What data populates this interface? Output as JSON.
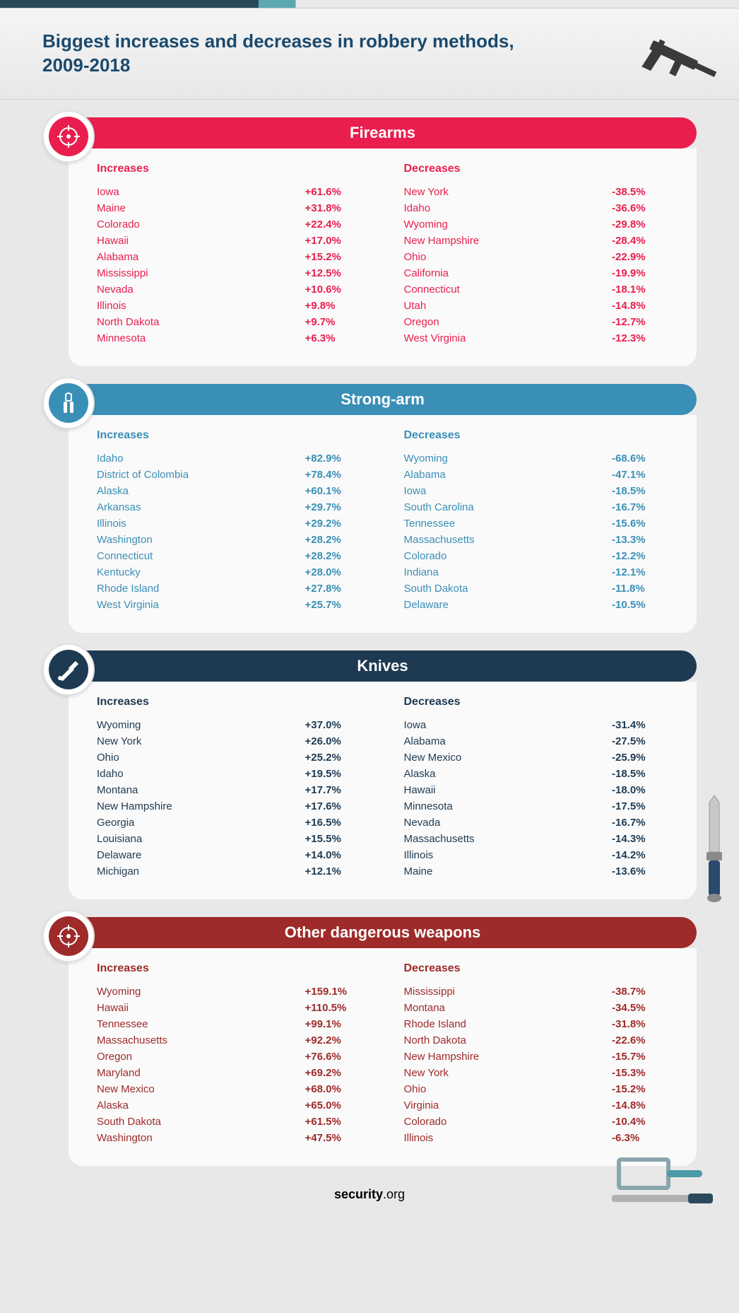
{
  "title": "Biggest increases and decreases in robbery methods, 2009-2018",
  "footer_brand": "security",
  "footer_suffix": ".org",
  "colors": {
    "title_text": "#1a4a6e",
    "card_bg": "#fafafa",
    "page_bg": "#e8e8e8"
  },
  "sections": [
    {
      "id": "firearms",
      "title": "Firearms",
      "header_bg": "#e91e4e",
      "badge_bg": "#e91e4e",
      "accent": "#e91e4e",
      "icon": "crosshair",
      "increases": [
        {
          "state": "Iowa",
          "value": "+61.6%"
        },
        {
          "state": "Maine",
          "value": "+31.8%"
        },
        {
          "state": "Colorado",
          "value": "+22.4%"
        },
        {
          "state": "Hawaii",
          "value": "+17.0%"
        },
        {
          "state": "Alabama",
          "value": "+15.2%"
        },
        {
          "state": "Mississippi",
          "value": "+12.5%"
        },
        {
          "state": "Nevada",
          "value": "+10.6%"
        },
        {
          "state": "Illinois",
          "value": "+9.8%"
        },
        {
          "state": "North Dakota",
          "value": "+9.7%"
        },
        {
          "state": "Minnesota",
          "value": "+6.3%"
        }
      ],
      "decreases": [
        {
          "state": "New York",
          "value": "-38.5%"
        },
        {
          "state": "Idaho",
          "value": "-36.6%"
        },
        {
          "state": "Wyoming",
          "value": "-29.8%"
        },
        {
          "state": "New Hampshire",
          "value": "-28.4%"
        },
        {
          "state": "Ohio",
          "value": "-22.9%"
        },
        {
          "state": "California",
          "value": "-19.9%"
        },
        {
          "state": "Connecticut",
          "value": "-18.1%"
        },
        {
          "state": "Utah",
          "value": "-14.8%"
        },
        {
          "state": "Oregon",
          "value": "-12.7%"
        },
        {
          "state": "West Virginia",
          "value": "-12.3%"
        }
      ]
    },
    {
      "id": "strongarm",
      "title": "Strong-arm",
      "header_bg": "#3a8fb7",
      "badge_bg": "#3a8fb7",
      "accent": "#3a8fb7",
      "icon": "gripper",
      "increases": [
        {
          "state": "Idaho",
          "value": "+82.9%"
        },
        {
          "state": "District of Colombia",
          "value": "+78.4%"
        },
        {
          "state": "Alaska",
          "value": "+60.1%"
        },
        {
          "state": "Arkansas",
          "value": "+29.7%"
        },
        {
          "state": "Illinois",
          "value": "+29.2%"
        },
        {
          "state": "Washington",
          "value": "+28.2%"
        },
        {
          "state": "Connecticut",
          "value": "+28.2%"
        },
        {
          "state": "Kentucky",
          "value": "+28.0%"
        },
        {
          "state": "Rhode Island",
          "value": "+27.8%"
        },
        {
          "state": "West Virginia",
          "value": "+25.7%"
        }
      ],
      "decreases": [
        {
          "state": "Wyoming",
          "value": "-68.6%"
        },
        {
          "state": "Alabama",
          "value": "-47.1%"
        },
        {
          "state": "Iowa",
          "value": "-18.5%"
        },
        {
          "state": "South Carolina",
          "value": "-16.7%"
        },
        {
          "state": "Tennessee",
          "value": "-15.6%"
        },
        {
          "state": "Massachusetts",
          "value": "-13.3%"
        },
        {
          "state": "Colorado",
          "value": "-12.2%"
        },
        {
          "state": "Indiana",
          "value": "-12.1%"
        },
        {
          "state": "South Dakota",
          "value": "-11.8%"
        },
        {
          "state": "Delaware",
          "value": "-10.5%"
        }
      ]
    },
    {
      "id": "knives",
      "title": "Knives",
      "header_bg": "#1e3a52",
      "badge_bg": "#1e3a52",
      "accent": "#1e3a52",
      "icon": "knife",
      "side_deco": true,
      "increases": [
        {
          "state": "Wyoming",
          "value": "+37.0%"
        },
        {
          "state": "New York",
          "value": "+26.0%"
        },
        {
          "state": "Ohio",
          "value": "+25.2%"
        },
        {
          "state": "Idaho",
          "value": "+19.5%"
        },
        {
          "state": "Montana",
          "value": "+17.7%"
        },
        {
          "state": "New Hampshire",
          "value": "+17.6%"
        },
        {
          "state": "Georgia",
          "value": "+16.5%"
        },
        {
          "state": "Louisiana",
          "value": "+15.5%"
        },
        {
          "state": "Delaware",
          "value": "+14.0%"
        },
        {
          "state": "Michigan",
          "value": "+12.1%"
        }
      ],
      "decreases": [
        {
          "state": "Iowa",
          "value": "-31.4%"
        },
        {
          "state": "Alabama",
          "value": "-27.5%"
        },
        {
          "state": "New Mexico",
          "value": "-25.9%"
        },
        {
          "state": "Alaska",
          "value": "-18.5%"
        },
        {
          "state": "Hawaii",
          "value": "-18.0%"
        },
        {
          "state": "Minnesota",
          "value": "-17.5%"
        },
        {
          "state": "Nevada",
          "value": "-16.7%"
        },
        {
          "state": "Massachusetts",
          "value": "-14.3%"
        },
        {
          "state": "Illinois",
          "value": "-14.2%"
        },
        {
          "state": "Maine",
          "value": "-13.6%"
        }
      ]
    },
    {
      "id": "other",
      "title": "Other dangerous weapons",
      "header_bg": "#9e2a2a",
      "badge_bg": "#9e2a2a",
      "accent": "#9e2a2a",
      "icon": "crosshair",
      "increases": [
        {
          "state": "Wyoming",
          "value": "+159.1%"
        },
        {
          "state": "Hawaii",
          "value": "+110.5%"
        },
        {
          "state": "Tennessee",
          "value": "+99.1%"
        },
        {
          "state": "Massachusetts",
          "value": "+92.2%"
        },
        {
          "state": "Oregon",
          "value": "+76.6%"
        },
        {
          "state": "Maryland",
          "value": "+69.2%"
        },
        {
          "state": "New Mexico",
          "value": "+68.0%"
        },
        {
          "state": "Alaska",
          "value": "+65.0%"
        },
        {
          "state": "South Dakota",
          "value": "+61.5%"
        },
        {
          "state": "Washington",
          "value": "+47.5%"
        }
      ],
      "decreases": [
        {
          "state": "Mississippi",
          "value": "-38.7%"
        },
        {
          "state": "Montana",
          "value": "-34.5%"
        },
        {
          "state": "Rhode Island",
          "value": "-31.8%"
        },
        {
          "state": "North Dakota",
          "value": "-22.6%"
        },
        {
          "state": "New Hampshire",
          "value": "-15.7%"
        },
        {
          "state": "New York",
          "value": "-15.3%"
        },
        {
          "state": "Ohio",
          "value": "-15.2%"
        },
        {
          "state": "Virginia",
          "value": "-14.8%"
        },
        {
          "state": "Colorado",
          "value": "-10.4%"
        },
        {
          "state": "Illinois",
          "value": "-6.3%"
        }
      ]
    }
  ],
  "labels": {
    "increases": "Increases",
    "decreases": "Decreases"
  }
}
